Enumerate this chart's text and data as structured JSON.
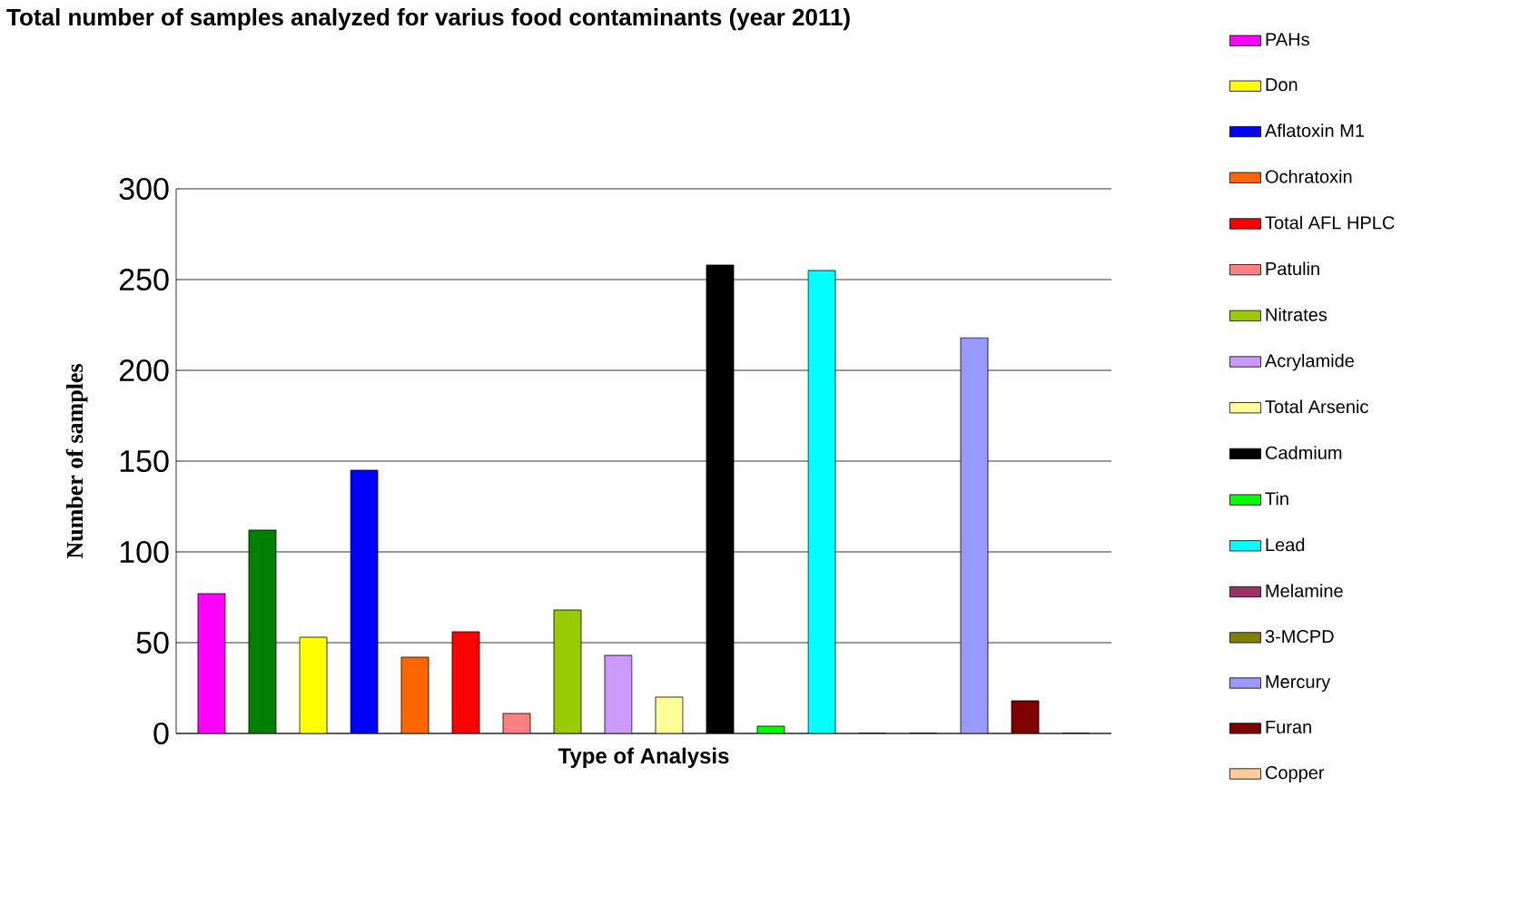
{
  "chart_data": {
    "type": "bar",
    "title": "Total number of samples analyzed for varius food contaminants (year 2011)",
    "xlabel": "Type of Analysis",
    "ylabel": "Number of samples",
    "categories": [
      null
    ],
    "series": [
      {
        "name": "PAHs",
        "color": "#ff00ff",
        "values": [
          77
        ]
      },
      {
        "color": "#008000",
        "values": [
          112
        ]
      },
      {
        "name": "Don",
        "color": "#ffff00",
        "values": [
          53
        ]
      },
      {
        "name": "Aflatoxin M1",
        "color": "#0000ff",
        "values": [
          145
        ]
      },
      {
        "name": "Ochratoxin",
        "color": "#ff6600",
        "values": [
          42
        ]
      },
      {
        "name": "Total AFL HPLC",
        "color": "#ff0000",
        "values": [
          56
        ]
      },
      {
        "name": "Patulin",
        "color": "#ff8080",
        "values": [
          11
        ]
      },
      {
        "name": "Nitrates",
        "color": "#99cc00",
        "values": [
          68
        ]
      },
      {
        "name": "Acrylamide",
        "color": "#cc99ff",
        "values": [
          43
        ]
      },
      {
        "name": "Total Arsenic",
        "color": "#ffff99",
        "values": [
          20
        ]
      },
      {
        "name": "Cadmium",
        "color": "#000000",
        "values": [
          258
        ]
      },
      {
        "name": "Tin",
        "color": "#00ff00",
        "values": [
          4
        ]
      },
      {
        "name": "Lead",
        "color": "#00ffff",
        "values": [
          255
        ]
      },
      {
        "name": "Melamine",
        "color": "#993366",
        "values": [
          0
        ]
      },
      {
        "name": "3-MCPD",
        "color": "#808000",
        "values": [
          0
        ]
      },
      {
        "name": "Mercury",
        "color": "#9999ff",
        "values": [
          218
        ]
      },
      {
        "name": "Furan",
        "color": "#800000",
        "values": [
          18
        ]
      },
      {
        "name": "Copper",
        "color": "#ffcc99",
        "values": [
          0
        ]
      }
    ],
    "ylim": [
      0,
      300
    ],
    "yticks": [
      0,
      50,
      100,
      150,
      200,
      250,
      300
    ],
    "grid": "y",
    "legend": "right",
    "tick_labels": "y"
  }
}
